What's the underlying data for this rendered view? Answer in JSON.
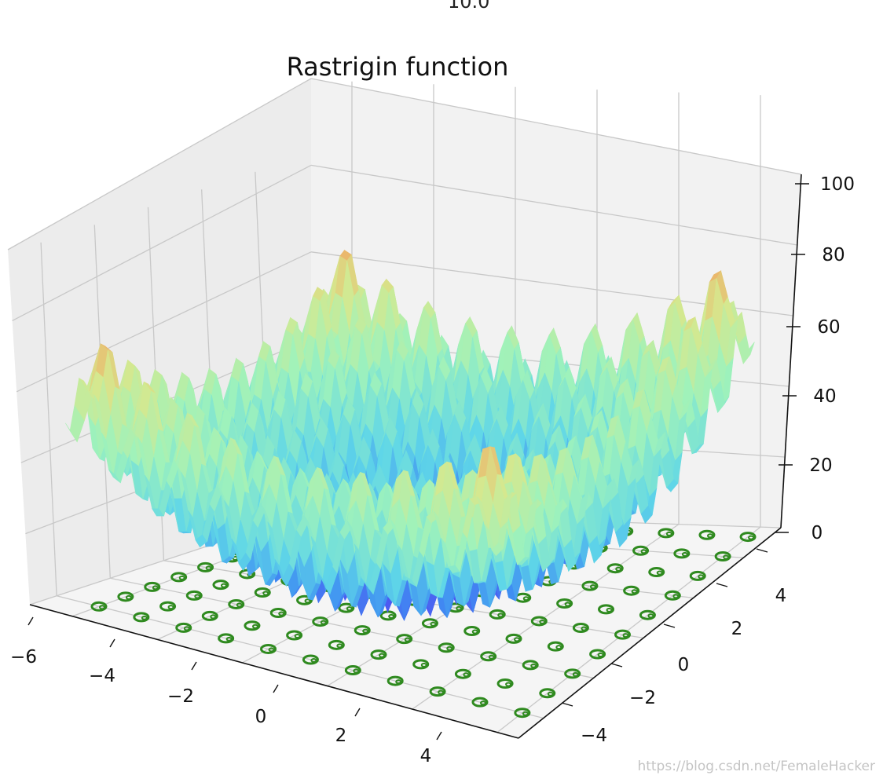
{
  "top_cut_label": "10.0",
  "watermark": "https://blog.csdn.net/FemaleHacker",
  "colors": {
    "pane_left": "#ececec",
    "pane_right": "#f2f2f2",
    "pane_floor": "#f5f5f5",
    "grid": "#c8c8c8",
    "contour": "#2f8a1f"
  },
  "chart_data": {
    "type": "surface3d",
    "title": "Rastrigin function",
    "function": "Z = 20 + X^2 - 10cos(2πX) + Y^2 - 10cos(2πY)",
    "colormap": "rainbow",
    "x_ticks": [
      "−6",
      "−4",
      "−2",
      "0",
      "2",
      "4"
    ],
    "y_ticks": [
      "−4",
      "−2",
      "0",
      "2",
      "4"
    ],
    "z_ticks": [
      "0",
      "20",
      "40",
      "60",
      "80",
      "100"
    ],
    "xlim": [
      -6,
      5.5
    ],
    "ylim": [
      -5,
      5.5
    ],
    "zlim": [
      0,
      100
    ],
    "contour_offset": 0,
    "contour_color": "green"
  }
}
